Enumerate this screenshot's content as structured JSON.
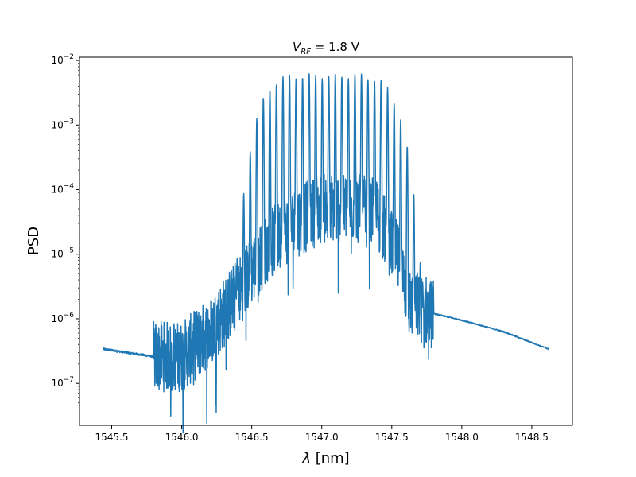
{
  "chart_data": {
    "type": "line",
    "title_prefix": "V",
    "title_sub": "RF",
    "title_suffix": " = 1.8 V",
    "xlabel_symbol": "λ",
    "xlabel_unit": " [nm]",
    "ylabel": "PSD",
    "xlim": [
      1545.27,
      1548.79
    ],
    "ylim_exp": [
      -7.65,
      -1.95
    ],
    "yscale": "log",
    "grid": false,
    "legend": "none",
    "x_ticks": [
      1545.5,
      1546.0,
      1546.5,
      1547.0,
      1547.5,
      1548.0,
      1548.5
    ],
    "x_tick_labels": [
      "1545.5",
      "1546.0",
      "1546.5",
      "1547.0",
      "1547.5",
      "1548.0",
      "1548.5"
    ],
    "y_tick_exps": [
      -7,
      -6,
      -5,
      -4,
      -3,
      -2
    ],
    "y_tick_labels": [
      {
        "base": "10",
        "exp": "−7"
      },
      {
        "base": "10",
        "exp": "−6"
      },
      {
        "base": "10",
        "exp": "−5"
      },
      {
        "base": "10",
        "exp": "−4"
      },
      {
        "base": "10",
        "exp": "−3"
      },
      {
        "base": "10",
        "exp": "−2"
      }
    ],
    "series": [
      {
        "color": "#1f77b4",
        "x_start": 1545.44,
        "x_end": 1548.62,
        "comb_center": 1547.05,
        "comb_spacing": 0.0467,
        "comb_halfwidth": 0.58,
        "peak_level": 0.0058,
        "baseline_left": [
          [
            1545.44,
            3.4e-07
          ],
          [
            1545.8,
            2.6e-07
          ]
        ],
        "baseline_right": [
          [
            1547.8,
            1.2e-06
          ],
          [
            1548.0,
            9.5e-07
          ],
          [
            1548.3,
            6.3e-07
          ],
          [
            1548.62,
            3.4e-07
          ]
        ],
        "floor_profile": [
          [
            1545.8,
            2.6e-07
          ],
          [
            1546.0,
            2.6e-07
          ],
          [
            1546.2,
            6e-07
          ],
          [
            1546.4,
            2.5e-06
          ],
          [
            1546.6,
            1.2e-05
          ],
          [
            1546.8,
            3e-05
          ],
          [
            1547.0,
            5e-05
          ],
          [
            1547.2,
            5.5e-05
          ],
          [
            1547.4,
            4e-05
          ],
          [
            1547.55,
            8e-06
          ],
          [
            1547.62,
            1.8e-06
          ],
          [
            1547.8,
            1.2e-06
          ]
        ]
      }
    ]
  }
}
